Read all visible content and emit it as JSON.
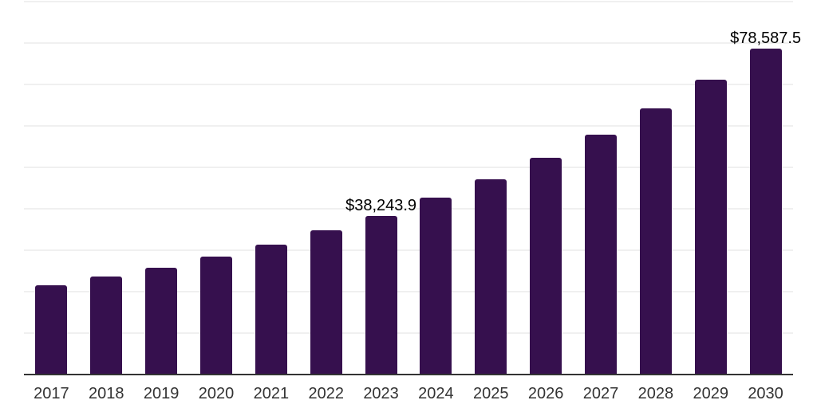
{
  "chart_data": {
    "type": "bar",
    "title": "",
    "xlabel": "",
    "ylabel": "",
    "legend": "none",
    "grid": "horizontal",
    "ylim": [
      0,
      90000
    ],
    "grid_interval": 10000,
    "categories": [
      "2017",
      "2018",
      "2019",
      "2020",
      "2021",
      "2022",
      "2023",
      "2024",
      "2025",
      "2026",
      "2027",
      "2028",
      "2029",
      "2030"
    ],
    "values": [
      21500,
      23650,
      25800,
      28450,
      31400,
      34750,
      38243.9,
      42600,
      47100,
      52300,
      57800,
      64300,
      71150,
      78587.5
    ],
    "data_labels": {
      "2023": "$38,243.9",
      "2030": "$78,587.5"
    },
    "bar_color": "#36104E",
    "axis_line_color": "#333333",
    "grid_color": "#f0f0f0",
    "data_label_color": "#000000",
    "tick_label_color": "#333333"
  }
}
